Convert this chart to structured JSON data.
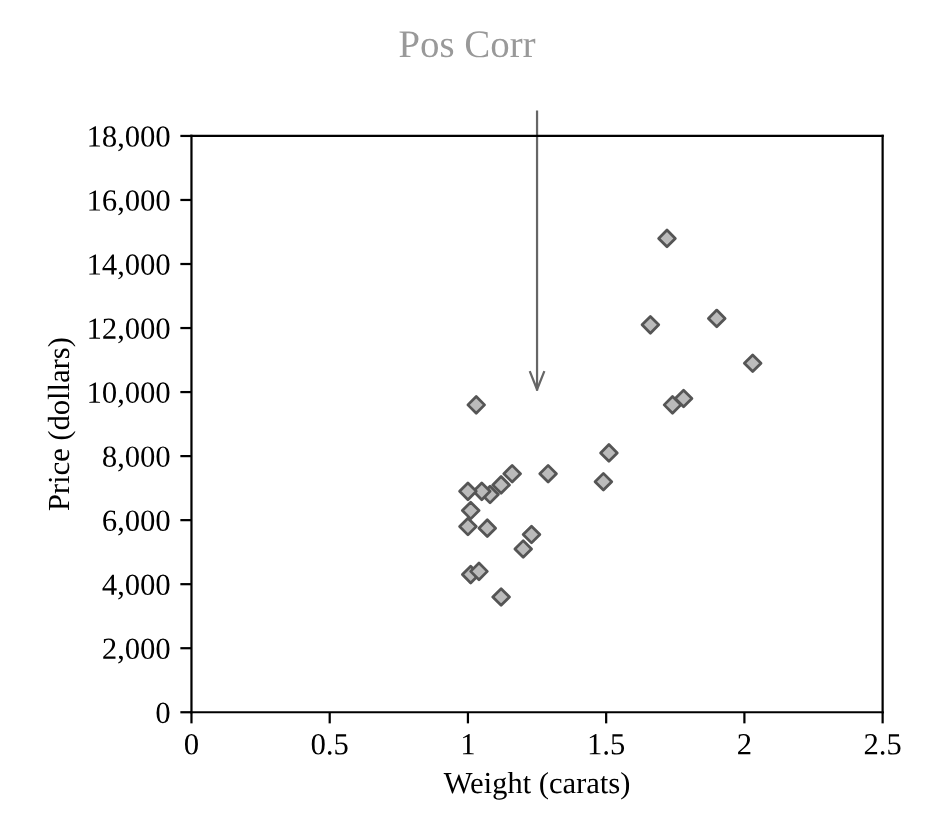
{
  "chart_data": {
    "type": "scatter",
    "xlabel": "Weight (carats)",
    "ylabel": "Price (dollars)",
    "x": [
      1.03,
      1.66,
      1.72,
      1.74,
      1.78,
      1.9,
      2.03,
      1.51,
      1.49,
      1.29,
      1.16,
      1.12,
      1.08,
      1.05,
      1.0,
      1.01,
      1.0,
      1.07,
      1.23,
      1.2,
      1.01,
      1.04,
      1.12
    ],
    "values": [
      9600,
      12100,
      14800,
      9600,
      9800,
      12300,
      10900,
      8100,
      7200,
      7450,
      7450,
      7100,
      6800,
      6900,
      6900,
      6300,
      5800,
      5750,
      5550,
      5100,
      4300,
      4400,
      3600
    ],
    "color": "#555555",
    "marker": "diamond",
    "grid": false,
    "xlim": [
      0,
      2.5
    ],
    "xticks": [
      0,
      0.5,
      1,
      1.5,
      2,
      2.5
    ],
    "ylim": [
      0,
      18000
    ],
    "yticks": [
      {
        "value": 0,
        "label": "0"
      },
      {
        "value": 2000,
        "label": "2,000"
      },
      {
        "value": 4000,
        "label": "4,000"
      },
      {
        "value": 6000,
        "label": "6,000"
      },
      {
        "value": 8000,
        "label": "8,000"
      },
      {
        "value": 10000,
        "label": "10,000"
      },
      {
        "value": 12000,
        "label": "12,000"
      },
      {
        "value": 14000,
        "label": "14,000"
      },
      {
        "value": 16000,
        "label": "16,000"
      },
      {
        "value": 18000,
        "label": "18,000"
      }
    ],
    "annotations": [
      "Pos Corr"
    ]
  }
}
